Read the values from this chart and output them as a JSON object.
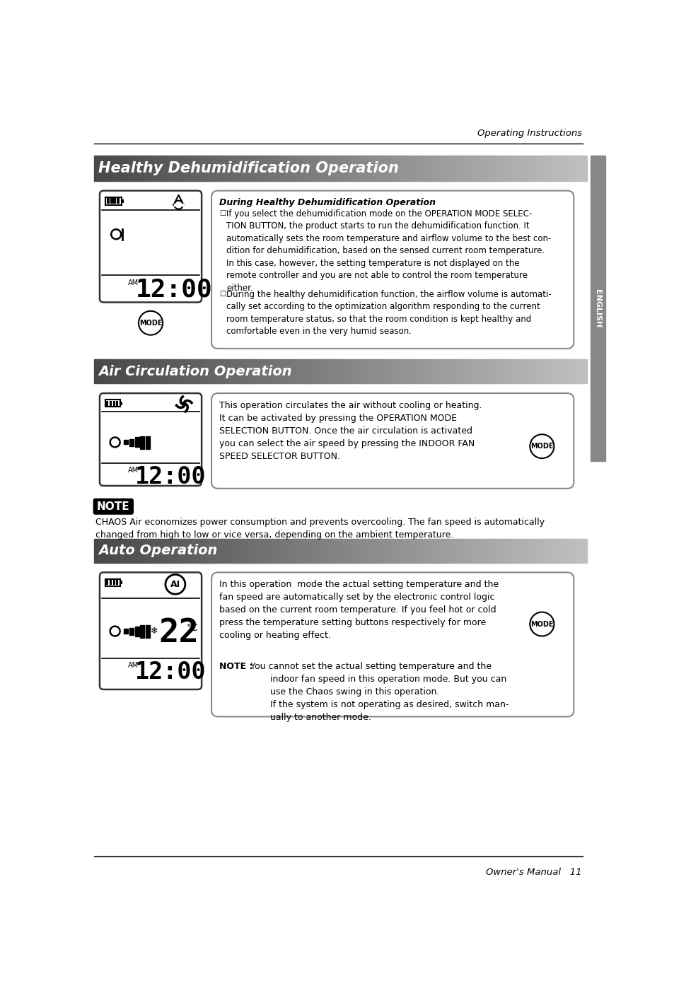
{
  "page_bg": "#ffffff",
  "header_text": "Operating Instructions",
  "footer_text": "Owner's Manual   11",
  "sidebar_color": "#888888",
  "sidebar_text": "ENGLISH",
  "section1_title": "Healthy Dehumidification Operation",
  "section1_header_bold": "During Healthy Dehumidification Operation",
  "section1_bullet1": "If you select the dehumidification mode on the OPERATION MODE SELEC-\nTION BUTTON, the product starts to run the dehumidification function. It\nautomatically sets the room temperature and airflow volume to the best con-\ndition for dehumidification, based on the sensed current room temperature.\nIn this case, however, the setting temperature is not displayed on the\nremote controller and you are not able to control the room temperature\neither.",
  "section1_bullet2": "During the healthy dehumidification function, the airflow volume is automati-\ncally set according to the optimization algorithm responding to the current\nroom temperature status, so that the room condition is kept healthy and\ncomfortable even in the very humid season.",
  "section2_title": "Air Circulation Operation",
  "section2_text": "This operation circulates the air without cooling or heating.\nIt can be activated by pressing the OPERATION MODE\nSELECTION BUTTON. Once the air circulation is activated\nyou can select the air speed by pressing the INDOOR FAN\nSPEED SELECTOR BUTTON.",
  "note_text": "CHAOS Air economizes power consumption and prevents overcooling. The fan speed is automatically\nchanged from high to low or vice versa, depending on the ambient temperature.",
  "section3_title": "Auto Operation",
  "section3_text": "In this operation  mode the actual setting temperature and the\nfan speed are automatically set by the electronic control logic\nbased on the current room temperature. If you feel hot or cold\npress the temperature setting buttons respectively for more\ncooling or heating effect.",
  "section3_note_bold": "NOTE :",
  "section3_note_rest": " You cannot set the actual setting temperature and the\n        indoor fan speed in this operation mode. But you can\n        use the Chaos swing in this operation.\n        If the system is not operating as desired, switch man-\n        ually to another mode.",
  "gradient_dark": "#555555",
  "gradient_light": "#cccccc"
}
